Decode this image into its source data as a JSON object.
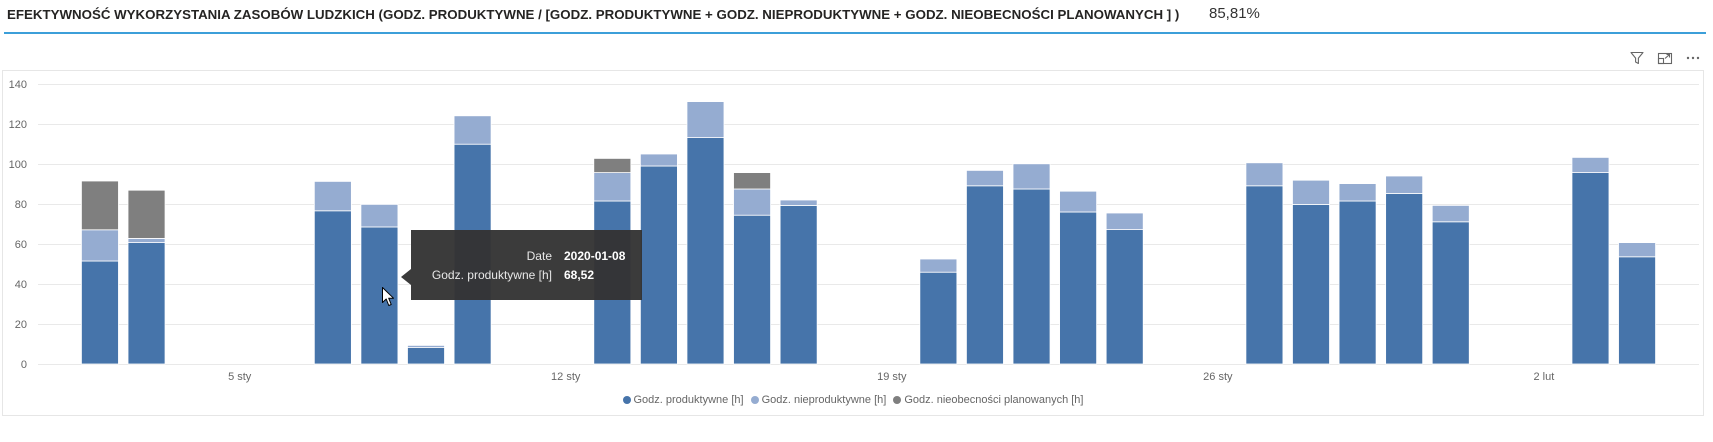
{
  "header": {
    "title": "EFEKTYWNOŚĆ WYKORZYSTANIA ZASOBÓW LUDZKICH (GODZ. PRODUKTYWNE / [GODZ. PRODUKTYWNE + GODZ. NIEPRODUKTYWNE + GODZ. NIEOBECNOŚCI PLANOWANYCH ] )",
    "kpi_value": "85,81%",
    "accent_color": "#3C9FD9"
  },
  "visual_header": {
    "icons": [
      "filter-icon",
      "focus-mode-icon",
      "more-options-icon"
    ]
  },
  "chart_data": {
    "type": "bar",
    "stacked": true,
    "x": [
      "2020-01-02",
      "2020-01-03",
      "2020-01-07",
      "2020-01-08",
      "2020-01-09",
      "2020-01-10",
      "2020-01-13",
      "2020-01-14",
      "2020-01-15",
      "2020-01-16",
      "2020-01-17",
      "2020-01-20",
      "2020-01-21",
      "2020-01-22",
      "2020-01-23",
      "2020-01-24",
      "2020-01-27",
      "2020-01-28",
      "2020-01-29",
      "2020-01-30",
      "2020-01-31",
      "2020-02-03",
      "2020-02-04"
    ],
    "series": [
      {
        "name": "Godz. produktywne [h]",
        "color": "#4674AA",
        "values": [
          51.5,
          60.7,
          76.6,
          68.52,
          8.2,
          109.9,
          81.5,
          99.0,
          113.2,
          74.4,
          79.3,
          45.9,
          89.1,
          87.5,
          76.0,
          67.2,
          89.1,
          79.8,
          81.5,
          85.3,
          71.1,
          95.7,
          53.6
        ]
      },
      {
        "name": "Godz. nieproduktywne [h]",
        "color": "#95ACD1",
        "values": [
          15.6,
          2.1,
          14.7,
          11.3,
          1.1,
          14.2,
          14.2,
          6.0,
          18.0,
          13.1,
          2.7,
          6.6,
          7.7,
          12.6,
          10.4,
          8.3,
          11.5,
          12.1,
          8.7,
          8.7,
          8.2,
          7.6,
          7.1
        ]
      },
      {
        "name": "Godz. nieobecności planowanych [h]",
        "color": "#7F7F7F",
        "values": [
          24.4,
          24.1,
          0,
          0,
          0,
          0,
          7.1,
          0,
          0,
          8.2,
          0,
          0,
          0,
          0,
          0,
          0,
          0,
          0,
          0,
          0,
          0,
          0,
          0
        ]
      }
    ],
    "ylim": [
      0,
      140
    ],
    "yticks": [
      0,
      20,
      40,
      60,
      80,
      100,
      120,
      140
    ],
    "xticks": [
      {
        "date": "2020-01-05",
        "label": "5 sty"
      },
      {
        "date": "2020-01-12",
        "label": "12 sty"
      },
      {
        "date": "2020-01-19",
        "label": "19 sty"
      },
      {
        "date": "2020-01-26",
        "label": "26 sty"
      },
      {
        "date": "2020-02-02",
        "label": "2 lut"
      }
    ],
    "grid": true,
    "legend": "bottom-center"
  },
  "tooltip": {
    "rows": [
      {
        "label": "Date",
        "value": "2020-01-08"
      },
      {
        "label": "Godz. produktywne [h]",
        "value": "68,52"
      }
    ]
  }
}
